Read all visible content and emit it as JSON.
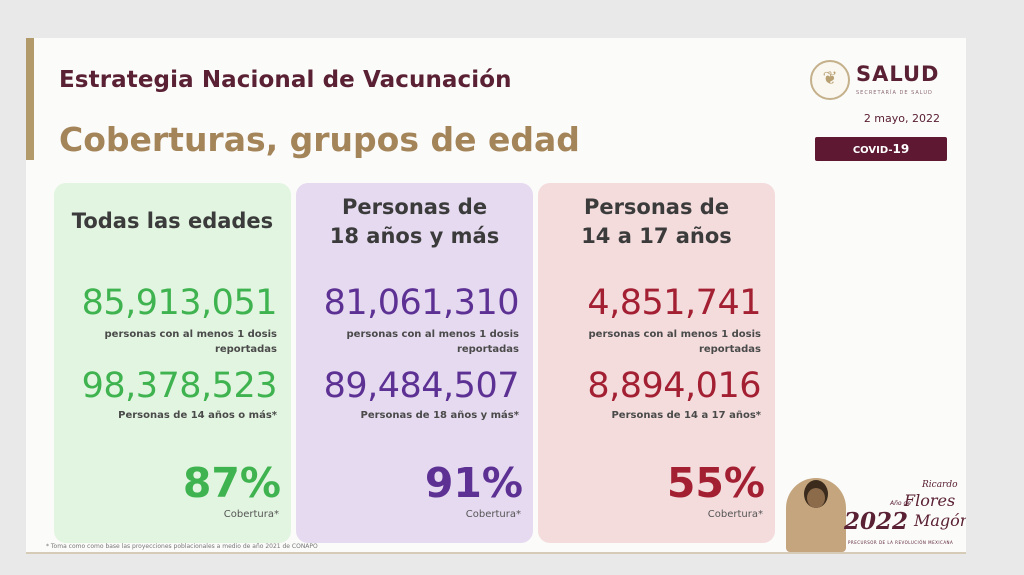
{
  "header": {
    "title": "Estrategia Nacional de Vacunación",
    "subtitle": "Coberturas, grupos de edad"
  },
  "logo": {
    "main": "SALUD",
    "sub": "SECRETARÍA DE SALUD",
    "icon": "government-seal-icon"
  },
  "date": "2 mayo, 2022",
  "badge": {
    "part1": "COVID-",
    "part2": "19"
  },
  "cards": [
    {
      "heading_line1": "Todas las edades",
      "heading_line2": "",
      "vaccinated": "85,913,051",
      "vaccinated_desc": "personas con al menos 1 dosis reportadas",
      "population": "98,378,523",
      "population_desc": "Personas de 14 años o más*",
      "coverage": "87%",
      "coverage_label": "Cobertura*",
      "color": "#3fb34f",
      "bg": "#e2f5e0"
    },
    {
      "heading_line1": "Personas de",
      "heading_line2": "18 años y más",
      "vaccinated": "81,061,310",
      "vaccinated_desc": "personas con al menos 1 dosis reportadas",
      "population": "89,484,507",
      "population_desc": "Personas de 18 años y más*",
      "coverage": "91%",
      "coverage_label": "Cobertura*",
      "color": "#5d3194",
      "bg": "#e6daf0"
    },
    {
      "heading_line1": "Personas de",
      "heading_line2": "14 a 17 años",
      "vaccinated": "4,851,741",
      "vaccinated_desc": "personas con al menos 1 dosis reportadas",
      "population": "8,894,016",
      "population_desc": "Personas de 14 a 17 años*",
      "coverage": "55%",
      "coverage_label": "Cobertura*",
      "color": "#a31f32",
      "bg": "#f4dcdd"
    }
  ],
  "footnote": "* Toma como como base las proyecciones poblacionales a medio de año 2021 de CONAPO",
  "anniversary": {
    "year": "2022",
    "small": "Año de",
    "name1": "Ricardo",
    "name2": "Flores",
    "name3": "Magón",
    "tag": "PRECURSOR DE LA REVOLUCIÓN MEXICANA"
  }
}
